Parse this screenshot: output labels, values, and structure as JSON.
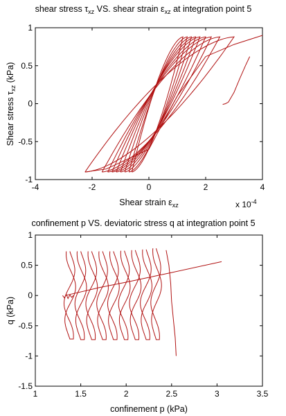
{
  "chart_data": [
    {
      "type": "line",
      "title": {
        "pre": "shear stress ",
        "sym": "τ",
        "sub": "xz",
        "mid": " VS. shear strain ",
        "sym2": "ε",
        "sub2": "xz",
        "post": " at integration point 5"
      },
      "xlabel": {
        "pre": "Shear strain ",
        "sym": "ε",
        "sub": "xz"
      },
      "ylabel": {
        "pre": "Shear stress ",
        "sym": "τ",
        "sub": "xz",
        "post": " (kPa)"
      },
      "x_exponent": {
        "base": "x 10",
        "exp": "-4"
      },
      "xlim": [
        -4,
        4
      ],
      "ylim": [
        -1,
        1
      ],
      "xticks": [
        -4,
        -2,
        0,
        2,
        4
      ],
      "yticks": [
        -1,
        -0.5,
        0,
        0.5,
        1
      ],
      "xtick_labels": [
        "-4",
        "-2",
        "0",
        "2",
        "4"
      ],
      "ytick_labels": [
        "-1",
        "-0.5",
        "0",
        "0.5",
        "1"
      ],
      "grid": false,
      "color": "#b01010",
      "loops": [
        {
          "xmin": -0.6,
          "xmax": 1.2,
          "ytop": 0.88,
          "ybot": -0.9
        },
        {
          "xmin": -0.7,
          "xmax": 1.35,
          "ytop": 0.88,
          "ybot": -0.9
        },
        {
          "xmin": -0.85,
          "xmax": 1.5,
          "ytop": 0.88,
          "ybot": -0.9
        },
        {
          "xmin": -1.0,
          "xmax": 1.65,
          "ytop": 0.88,
          "ybot": -0.9
        },
        {
          "xmin": -1.15,
          "xmax": 1.8,
          "ytop": 0.88,
          "ybot": -0.9
        },
        {
          "xmin": -1.3,
          "xmax": 2.0,
          "ytop": 0.88,
          "ybot": -0.9
        },
        {
          "xmin": -1.45,
          "xmax": 2.2,
          "ytop": 0.88,
          "ybot": -0.9
        },
        {
          "xmin": -1.65,
          "xmax": 2.5,
          "ytop": 0.88,
          "ybot": -0.9
        },
        {
          "xmin": -2.25,
          "xmax": 3.0,
          "ytop": 0.88,
          "ybot": -0.9
        }
      ],
      "tail": [
        [
          -2.25,
          -0.9
        ],
        [
          -1.5,
          -0.86
        ],
        [
          0.0,
          -0.6
        ],
        [
          1.0,
          0.1
        ],
        [
          2.0,
          0.62
        ],
        [
          3.0,
          0.78
        ],
        [
          4.0,
          0.9
        ]
      ],
      "final": [
        [
          2.6,
          -0.01
        ],
        [
          2.7,
          0.0
        ],
        [
          2.8,
          0.02
        ],
        [
          3.0,
          0.15
        ],
        [
          3.2,
          0.33
        ],
        [
          3.4,
          0.5
        ],
        [
          3.55,
          0.62
        ]
      ]
    },
    {
      "type": "line",
      "title": "confinement p VS. deviatoric stress q at integration point 5",
      "xlabel": "confinement p (kPa)",
      "ylabel": "q (kPa)",
      "xlim": [
        1,
        3.5
      ],
      "ylim": [
        -1.5,
        1
      ],
      "xticks": [
        1,
        1.5,
        2,
        2.5,
        3,
        3.5
      ],
      "yticks": [
        -1.5,
        -1,
        -0.5,
        0,
        0.5,
        1
      ],
      "xtick_labels": [
        "1",
        "1.5",
        "2",
        "2.5",
        "3",
        "3.5"
      ],
      "ytick_labels": [
        "-1.5",
        "-1",
        "-0.5",
        "0",
        "0.5",
        "1"
      ],
      "grid": false,
      "color": "#b01010",
      "lobes": [
        {
          "x": 1.38,
          "w": 0.065,
          "top": 0.73,
          "bot": -0.72
        },
        {
          "x": 1.5,
          "w": 0.065,
          "top": 0.73,
          "bot": -0.73
        },
        {
          "x": 1.62,
          "w": 0.065,
          "top": 0.73,
          "bot": -0.73
        },
        {
          "x": 1.74,
          "w": 0.065,
          "top": 0.73,
          "bot": -0.73
        },
        {
          "x": 1.86,
          "w": 0.065,
          "top": 0.73,
          "bot": -0.73
        },
        {
          "x": 1.98,
          "w": 0.065,
          "top": 0.74,
          "bot": -0.73
        },
        {
          "x": 2.1,
          "w": 0.065,
          "top": 0.75,
          "bot": -0.73
        },
        {
          "x": 2.22,
          "w": 0.065,
          "top": 0.76,
          "bot": -0.73
        },
        {
          "x": 2.33,
          "w": 0.06,
          "top": 0.78,
          "bot": -0.73
        }
      ],
      "trend": [
        [
          1.33,
          0.0
        ],
        [
          1.7,
          0.13
        ],
        [
          2.0,
          0.22
        ],
        [
          2.5,
          0.38
        ],
        [
          3.05,
          0.56
        ]
      ],
      "initial": [
        [
          1.3,
          0.0
        ],
        [
          1.32,
          -0.04
        ],
        [
          1.34,
          0.02
        ],
        [
          1.36,
          -0.05
        ],
        [
          1.38,
          0.01
        ],
        [
          1.4,
          -0.03
        ],
        [
          1.42,
          0.0
        ]
      ],
      "right_end": [
        [
          2.44,
          0.75
        ],
        [
          2.47,
          0.5
        ],
        [
          2.49,
          0.2
        ],
        [
          2.5,
          -0.1
        ],
        [
          2.52,
          -0.4
        ],
        [
          2.54,
          -0.7
        ],
        [
          2.55,
          -1.0
        ]
      ]
    }
  ]
}
